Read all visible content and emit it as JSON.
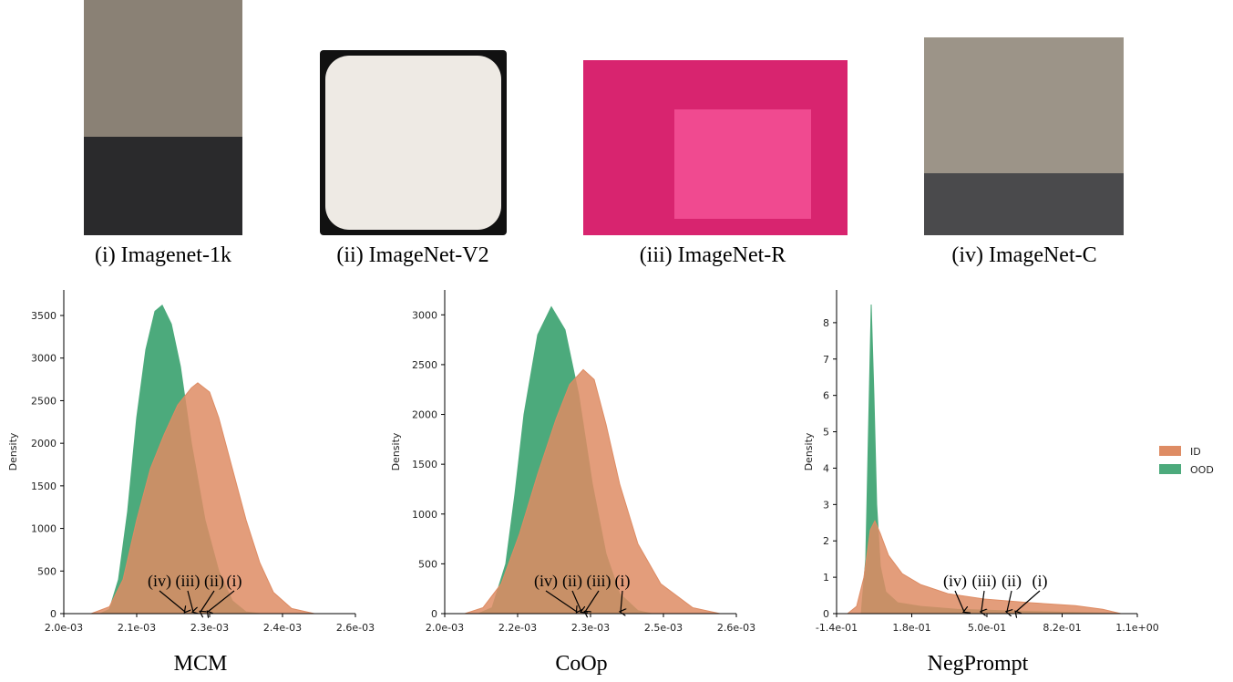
{
  "images": [
    {
      "caption": "(i) Imagenet-1k"
    },
    {
      "caption": "(ii) ImageNet-V2"
    },
    {
      "caption": "(iii) ImageNet-R"
    },
    {
      "caption": "(iv) ImageNet-C"
    }
  ],
  "chart_data": [
    {
      "type": "area",
      "title": "MCM",
      "ylabel": "Density",
      "grid": false,
      "xlim": [
        0.002,
        0.0026
      ],
      "ylim": [
        0,
        3800
      ],
      "xticks": [
        {
          "value": 0.002,
          "label": "2.0e-03"
        },
        {
          "value": 0.00215,
          "label": "2.1e-03"
        },
        {
          "value": 0.0023,
          "label": "2.3e-03"
        },
        {
          "value": 0.00245,
          "label": "2.4e-03"
        },
        {
          "value": 0.0026,
          "label": "2.6e-03"
        }
      ],
      "yticks": [
        0,
        500,
        1000,
        1500,
        2000,
        2500,
        3000,
        3500
      ],
      "series": [
        {
          "name": "OOD",
          "color": "#4caa7c",
          "x": [
            0.002075,
            0.0020938,
            0.0021125,
            0.0021313,
            0.00215,
            0.0021688,
            0.0021875,
            0.0022025,
            0.0022213,
            0.00224,
            0.0022625,
            0.0022906,
            0.0023188,
            0.0023469,
            0.002375,
            0.0024031
          ],
          "values": [
            0,
            50,
            400,
            1200,
            2300,
            3100,
            3550,
            3620,
            3400,
            2900,
            2000,
            1100,
            500,
            150,
            20,
            0
          ]
        },
        {
          "name": "ID",
          "color": "#de8c64",
          "x": [
            0.0020563,
            0.0020938,
            0.0021219,
            0.00215,
            0.0021781,
            0.0022063,
            0.0022344,
            0.0022625,
            0.0022756,
            0.0023,
            0.0023188,
            0.0023469,
            0.002375,
            0.0024031,
            0.0024313,
            0.0024688,
            0.0025156
          ],
          "values": [
            0,
            80,
            400,
            1100,
            1700,
            2100,
            2450,
            2650,
            2710,
            2600,
            2300,
            1700,
            1100,
            600,
            250,
            60,
            0
          ]
        }
      ],
      "annotations": [
        {
          "text": "(iv)",
          "x": 0.0022494
        },
        {
          "text": "(iii)",
          "x": 0.0022663
        },
        {
          "text": "(ii)",
          "x": 0.0022813
        },
        {
          "text": "(i)",
          "x": 0.0022963
        }
      ]
    },
    {
      "type": "area",
      "title": "CoOp",
      "ylabel": "Density",
      "grid": false,
      "xlim": [
        0.002,
        0.0026
      ],
      "ylim": [
        0,
        3250
      ],
      "xticks": [
        {
          "value": 0.002,
          "label": "2.0e-03"
        },
        {
          "value": 0.00215,
          "label": "2.2e-03"
        },
        {
          "value": 0.0023,
          "label": "2.3e-03"
        },
        {
          "value": 0.00245,
          "label": "2.5e-03"
        },
        {
          "value": 0.0026,
          "label": "2.6e-03"
        }
      ],
      "yticks": [
        0,
        500,
        1000,
        1500,
        2000,
        2500,
        3000
      ],
      "series": [
        {
          "name": "OOD",
          "color": "#4caa7c",
          "x": [
            0.0020694,
            0.0020975,
            0.0021256,
            0.0021444,
            0.0021631,
            0.0021913,
            0.0022194,
            0.0022475,
            0.0022756,
            0.0023038,
            0.0023319,
            0.00236,
            0.0023975,
            0.0024256
          ],
          "values": [
            0,
            60,
            500,
            1200,
            2000,
            2800,
            3080,
            2850,
            2200,
            1300,
            600,
            200,
            30,
            0
          ]
        },
        {
          "name": "ID",
          "color": "#de8c64",
          "x": [
            0.0020413,
            0.0020788,
            0.0021163,
            0.0021538,
            0.0021913,
            0.0022288,
            0.0022569,
            0.002285,
            0.0023075,
            0.0023319,
            0.00236,
            0.0023975,
            0.0024444,
            0.00251,
            0.0025663
          ],
          "values": [
            0,
            60,
            300,
            800,
            1400,
            1950,
            2300,
            2450,
            2350,
            1900,
            1300,
            700,
            300,
            60,
            0
          ]
        }
      ],
      "annotations": [
        {
          "text": "(iv)",
          "x": 0.0022719
        },
        {
          "text": "(ii)",
          "x": 0.0022813
        },
        {
          "text": "(iii)",
          "x": 0.0022888
        },
        {
          "text": "(i)",
          "x": 0.0023619
        }
      ]
    },
    {
      "type": "area",
      "title": "NegPrompt",
      "ylabel": "Density",
      "grid": false,
      "legend": "right",
      "xlim": [
        -0.14,
        1.14
      ],
      "ylim": [
        0,
        8.9
      ],
      "xticks": [
        {
          "value": -0.14,
          "label": "-1.4e-01"
        },
        {
          "value": 0.18,
          "label": "1.8e-01"
        },
        {
          "value": 0.5,
          "label": "5.0e-01"
        },
        {
          "value": 0.82,
          "label": "8.2e-01"
        },
        {
          "value": 1.14,
          "label": "1.1e+00"
        }
      ],
      "yticks": [
        0,
        1,
        2,
        3,
        4,
        5,
        6,
        7,
        8
      ],
      "series": [
        {
          "name": "ID",
          "color": "#de8c64",
          "x": [
            -0.0935,
            -0.0547,
            -0.0236,
            0.0035,
            0.0229,
            0.0462,
            0.0811,
            0.1393,
            0.2169,
            0.3333,
            0.4884,
            0.6824,
            0.8763,
            0.9927,
            1.07
          ],
          "values": [
            0,
            0.2,
            1.0,
            2.3,
            2.55,
            2.2,
            1.6,
            1.1,
            0.8,
            0.55,
            0.4,
            0.3,
            0.22,
            0.12,
            0
          ]
        },
        {
          "name": "OOD",
          "color": "#4caa7c",
          "x": [
            -0.0353,
            -0.0159,
            -0.0043,
            0.0074,
            0.019,
            0.0307,
            0.0462,
            0.0695,
            0.12,
            0.217,
            0.372,
            0.566,
            0.76,
            0.954,
            1.07
          ],
          "values": [
            0,
            1.5,
            5,
            8.5,
            6,
            3,
            1.3,
            0.6,
            0.3,
            0.2,
            0.12,
            0.08,
            0.05,
            0.02,
            0
          ]
        }
      ],
      "annotations": [
        {
          "text": "(iv)",
          "x": 0.403
        },
        {
          "text": "(iii)",
          "x": 0.476
        },
        {
          "text": "(ii)",
          "x": 0.585
        },
        {
          "text": "(i)",
          "x": 0.623
        }
      ]
    }
  ]
}
